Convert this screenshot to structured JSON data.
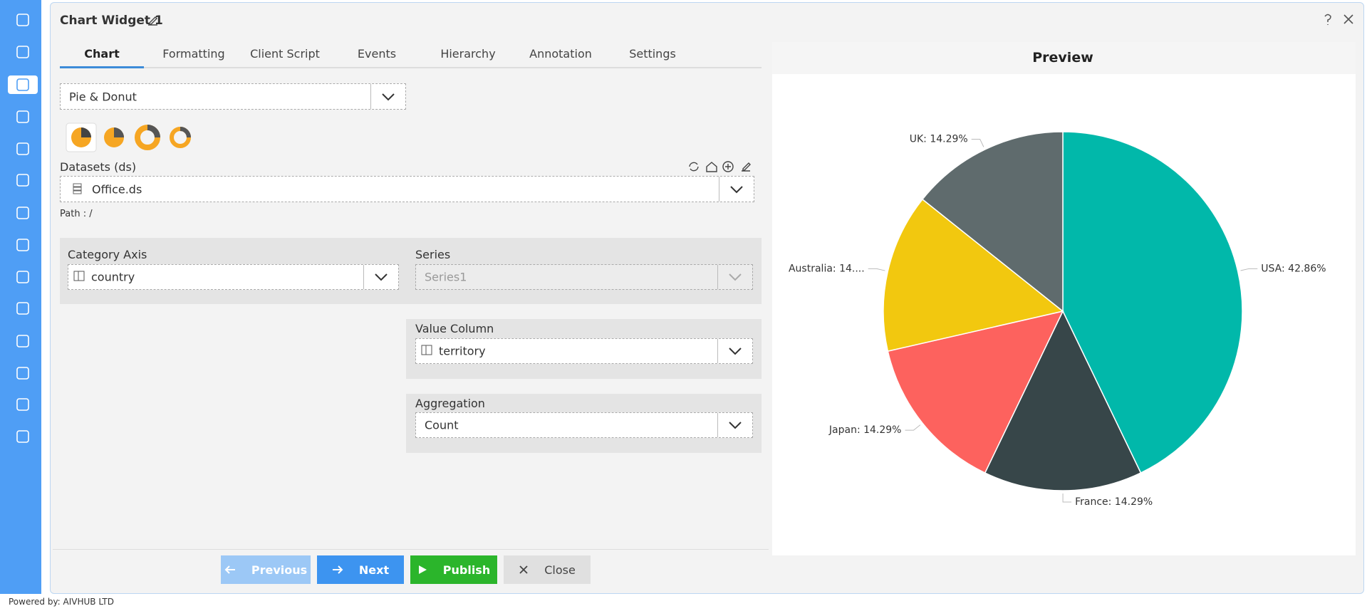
{
  "header": {
    "title": "Chart Widget 1"
  },
  "tabs": [
    "Chart",
    "Formatting",
    "Client Script",
    "Events",
    "Hierarchy",
    "Annotation",
    "Settings"
  ],
  "form": {
    "chart_type": "Pie & Donut",
    "datasets_label": "Datasets (ds)",
    "dataset": "Office.ds",
    "path": "Path : /",
    "category_axis_label": "Category Axis",
    "category_axis": "country",
    "series_label": "Series",
    "series": "Series1",
    "value_column_label": "Value Column",
    "value_column": "territory",
    "aggregation_label": "Aggregation",
    "aggregation": "Count"
  },
  "buttons": [
    "Previous",
    "Next",
    "Publish",
    "Close"
  ],
  "footer": "Powered by: AIVHUB LTD",
  "chart_data": {
    "type": "pie",
    "title": "Preview",
    "values": [
      42.86,
      14.29,
      14.29,
      14.29,
      14.29
    ],
    "value_labels": [
      "USA: 42.86%",
      "France: 14.29%",
      "Japan: 14.29%",
      "Australia: 14....",
      "UK: 14.29%"
    ],
    "colors": [
      "#01b8aa",
      "#374649",
      "#fd625e",
      "#f2c80f",
      "#5f6b6d"
    ]
  }
}
